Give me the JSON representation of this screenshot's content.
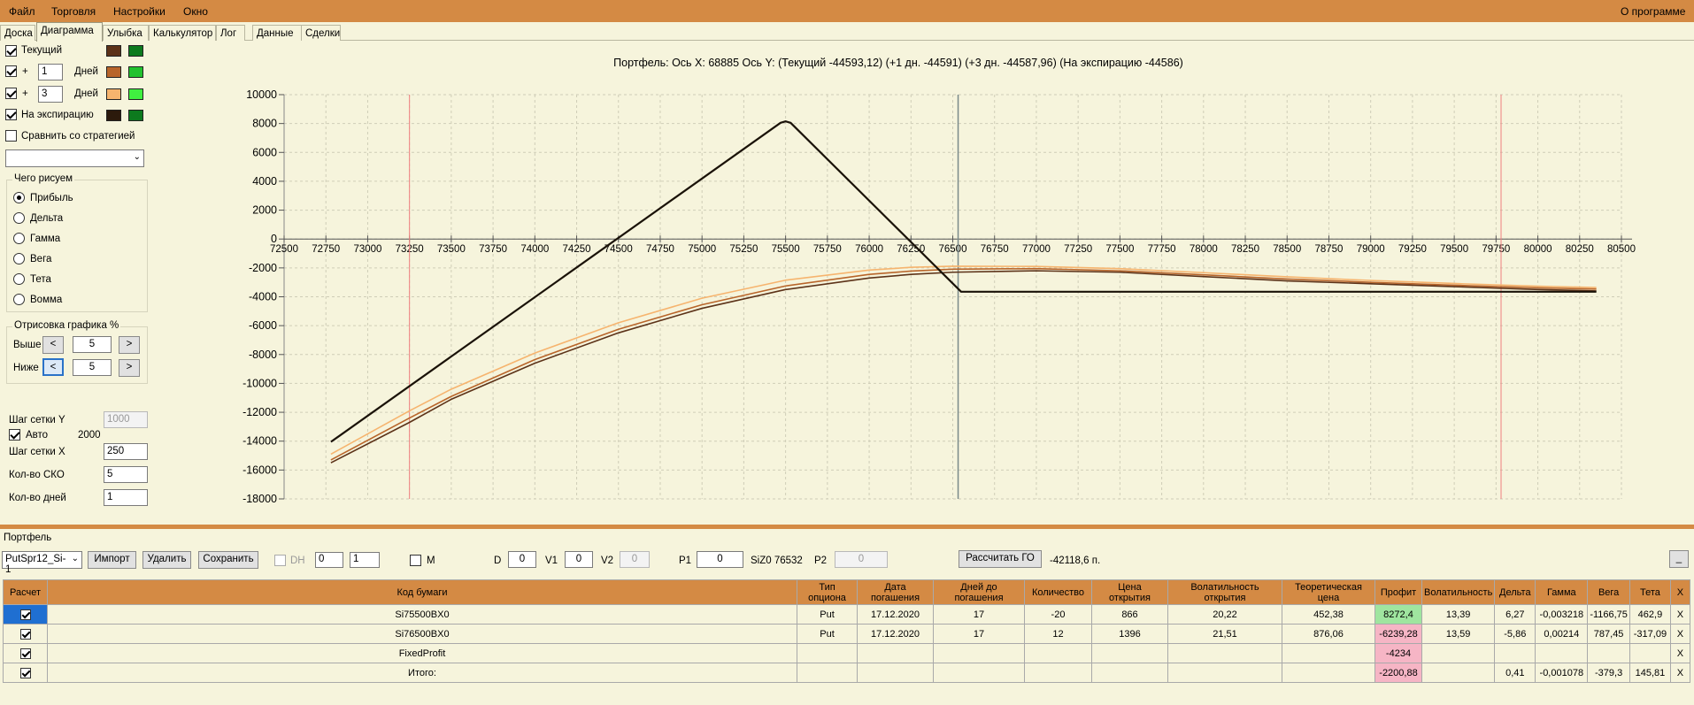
{
  "menu": {
    "file": "Файл",
    "trade": "Торговля",
    "settings": "Настройки",
    "window": "Окно",
    "about": "О программе"
  },
  "tabs": [
    "Доска",
    "Диаграмма",
    "Улыбка",
    "Калькулятор",
    "Лог",
    "Данные",
    "Сделки"
  ],
  "left": {
    "current": "Текущий",
    "plus": "+",
    "days": "Дней",
    "days1": "1",
    "days3": "3",
    "expiry": "На экспирацию",
    "compare": "Сравнить со стратегией",
    "what_title": "Чего рисуем",
    "radios": [
      "Прибыль",
      "Дельта",
      "Гамма",
      "Вега",
      "Тета",
      "Вомма"
    ],
    "draw_title": "Отрисовка графика %",
    "above": "Выше",
    "below": "Ниже",
    "above_val": "5",
    "below_val": "5",
    "lt": "<",
    "gt": ">",
    "grid_y": "Шаг сетки Y",
    "grid_y_val": "1000",
    "auto": "Авто",
    "auto_val": "2000",
    "grid_x": "Шаг сетки X",
    "grid_x_val": "250",
    "sko": "Кол-во СКО",
    "sko_val": "5",
    "ndays": "Кол-во дней",
    "ndays_val": "1"
  },
  "colors": {
    "current_dark": "#5c3218",
    "current_green": "#0d7a1e",
    "d1_dark": "#b8652a",
    "d1_green": "#22c22e",
    "d3_dark": "#f6b46e",
    "d3_green": "#40f040",
    "exp_dark": "#2c1a0c",
    "exp_green": "#0d7a1e"
  },
  "chart_title": "Портфель: Ось X: 68885 Ось Y:  (Текущий -44593,12)  (+1 дн. -44591)  (+3 дн. -44587,96)  (На экспирацию -44586)",
  "chart_data": {
    "type": "line",
    "xlim": [
      72500,
      80500
    ],
    "ylim": [
      -18000,
      10000
    ],
    "x_ticks": [
      72500,
      72750,
      73000,
      73250,
      73500,
      73750,
      74000,
      74250,
      74500,
      74750,
      75000,
      75250,
      75500,
      75750,
      76000,
      76250,
      76500,
      76750,
      77000,
      77250,
      77500,
      77750,
      78000,
      78250,
      78500,
      78750,
      79000,
      79250,
      79500,
      79750,
      80000,
      80250,
      80500
    ],
    "y_ticks": [
      10000,
      8000,
      6000,
      4000,
      2000,
      0,
      -2000,
      -4000,
      -6000,
      -8000,
      -10000,
      -12000,
      -14000,
      -16000,
      -18000
    ],
    "vlines_red": [
      73250,
      79780
    ],
    "vline_gray": 76532,
    "series": [
      {
        "key": "expiry",
        "color": "#1a1208",
        "x": [
          72780,
          75470,
          75500,
          75530,
          76550,
          80350
        ],
        "y": [
          -14050,
          8050,
          8150,
          8050,
          -3650,
          -3650
        ]
      },
      {
        "key": "current",
        "color": "#5c3218",
        "x": [
          72780,
          73250,
          73500,
          74000,
          74500,
          75000,
          75500,
          76000,
          76250,
          76500,
          77000,
          77500,
          78000,
          78500,
          79000,
          79500,
          80000,
          80350
        ],
        "y": [
          -15500,
          -12700,
          -11100,
          -8600,
          -6500,
          -4800,
          -3500,
          -2700,
          -2450,
          -2300,
          -2200,
          -2300,
          -2600,
          -2900,
          -3100,
          -3300,
          -3500,
          -3600
        ]
      },
      {
        "key": "d1",
        "color": "#b8652a",
        "x": [
          72780,
          73250,
          73500,
          74000,
          74500,
          75000,
          75500,
          76000,
          76250,
          76500,
          77000,
          77500,
          78000,
          78500,
          79000,
          79500,
          80000,
          80350
        ],
        "y": [
          -15300,
          -12400,
          -10900,
          -8350,
          -6250,
          -4550,
          -3250,
          -2450,
          -2220,
          -2090,
          -2050,
          -2200,
          -2480,
          -2770,
          -3000,
          -3200,
          -3380,
          -3470
        ]
      },
      {
        "key": "d3",
        "color": "#f6b46e",
        "x": [
          72780,
          73250,
          73500,
          74000,
          74500,
          75000,
          75500,
          76000,
          76250,
          76500,
          77000,
          77500,
          78000,
          78500,
          79000,
          79500,
          80000,
          80350
        ],
        "y": [
          -14900,
          -11900,
          -10400,
          -7900,
          -5800,
          -4100,
          -2850,
          -2150,
          -1960,
          -1880,
          -1900,
          -2050,
          -2330,
          -2620,
          -2870,
          -3080,
          -3270,
          -3360
        ]
      }
    ]
  },
  "portfolio": {
    "label": "Портфель",
    "name": "PutSpr12_Si-1",
    "import": "Импорт",
    "delete": "Удалить",
    "save": "Сохранить",
    "dh": "DH",
    "dh0": "0",
    "dh1": "1",
    "m": "M",
    "d": "D",
    "d_val": "0",
    "v1": "V1",
    "v1_val": "0",
    "v2": "V2",
    "v2_val": "0",
    "p1": "P1",
    "p1_val": "0",
    "siz": "SiZ0 76532",
    "p2": "P2",
    "p2_val": "0",
    "calc_go": "Рассчитать ГО",
    "go_val": "-42118,6 п.",
    "min": "_"
  },
  "table": {
    "headers": [
      "Расчет",
      "Код бумаги",
      "Тип опциона",
      "Дата погашения",
      "Дней до погашения",
      "Количество",
      "Цена открытия",
      "Волатильность открытия",
      "Теоретическая цена",
      "Профит",
      "Волатильность",
      "Дельта",
      "Гамма",
      "Вега",
      "Тета",
      "Х"
    ],
    "rows": [
      [
        "Si75500BX0",
        "Put",
        "17.12.2020",
        "17",
        "-20",
        "866",
        "20,22",
        "452,38",
        "8272,4",
        "13,39",
        "6,27",
        "-0,003218",
        "-1166,75",
        "462,9",
        "X"
      ],
      [
        "Si76500BX0",
        "Put",
        "17.12.2020",
        "17",
        "12",
        "1396",
        "21,51",
        "876,06",
        "-6239,28",
        "13,59",
        "-5,86",
        "0,00214",
        "787,45",
        "-317,09",
        "X"
      ],
      [
        "FixedProfit",
        "",
        "",
        "",
        "",
        "",
        "",
        "",
        "-4234",
        "",
        "",
        "",
        "",
        "",
        "X"
      ],
      [
        "Итого:",
        "",
        "",
        "",
        "",
        "",
        "",
        "",
        "-2200,88",
        "",
        "0,41",
        "-0,001078",
        "-379,3",
        "145,81",
        "X"
      ]
    ]
  }
}
